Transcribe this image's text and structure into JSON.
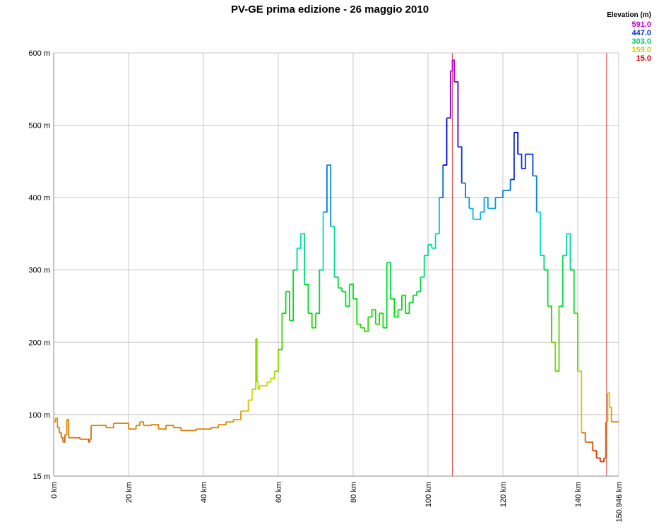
{
  "chart_data": {
    "type": "line",
    "title": "PV-GE prima edizione - 26 maggio 2010",
    "xlabel": "",
    "ylabel": "",
    "xlim": [
      0,
      150.946
    ],
    "ylim": [
      15,
      600
    ],
    "x_ticks": [
      0,
      20,
      40,
      60,
      80,
      100,
      120,
      140,
      150.946
    ],
    "x_tick_labels": [
      "0 km",
      "20 km",
      "40 km",
      "60 km",
      "80 km",
      "100 km",
      "120 km",
      "140 km",
      "150.946 km"
    ],
    "y_ticks": [
      15,
      100,
      200,
      300,
      400,
      500,
      600
    ],
    "y_tick_labels": [
      "15 m",
      "100 m",
      "200 m",
      "300 m",
      "400 m",
      "500 m",
      "600 m"
    ],
    "grid": true,
    "legend": {
      "title": "Elevation (m)",
      "placement": "top-right",
      "entries": [
        {
          "label": "591.0",
          "color": "#cc00cc"
        },
        {
          "label": "447.0",
          "color": "#0033cc"
        },
        {
          "label": "303.0",
          "color": "#00cc66"
        },
        {
          "label": "159.0",
          "color": "#cccc00"
        },
        {
          "label": "15.0",
          "color": "#dd0000"
        }
      ]
    },
    "markers": [
      {
        "x": 106.5,
        "color": "#dd4444"
      },
      {
        "x": 147.7,
        "color": "#dd4444"
      }
    ],
    "series": [
      {
        "x": [
          0,
          0.5,
          1,
          1.5,
          2,
          2.5,
          3,
          3.5,
          4,
          4.5,
          5,
          6,
          7,
          8,
          9,
          9.3,
          9.6,
          10,
          12,
          14,
          16,
          18,
          20,
          22,
          23,
          24,
          26,
          28,
          30,
          32,
          34,
          36,
          38,
          40,
          42,
          44,
          46,
          48,
          50,
          52,
          53,
          54,
          54.3,
          54.6,
          55,
          56,
          57,
          58,
          59,
          60,
          61,
          62,
          63,
          64,
          65,
          66,
          67,
          68,
          69,
          70,
          71,
          72,
          73,
          74,
          75,
          76,
          77,
          78,
          79,
          80,
          81,
          82,
          83,
          84,
          85,
          86,
          87,
          88,
          89,
          90,
          91,
          92,
          93,
          94,
          95,
          96,
          97,
          98,
          99,
          100,
          101,
          102,
          103,
          104,
          105,
          106,
          106.5,
          107,
          108,
          109,
          110,
          111,
          112,
          113,
          114,
          115,
          116,
          117,
          118,
          119,
          120,
          121,
          122,
          123,
          124,
          125,
          126,
          127,
          128,
          129,
          130,
          131,
          132,
          133,
          134,
          135,
          136,
          137,
          138,
          139,
          140,
          141,
          142,
          143,
          144,
          145,
          146,
          147,
          147.5,
          148,
          148.5,
          149,
          150,
          150.946
        ],
        "y": [
          90,
          95,
          82,
          75,
          68,
          62,
          72,
          93,
          68,
          68,
          68,
          68,
          66,
          66,
          66,
          62,
          66,
          85,
          85,
          82,
          88,
          88,
          80,
          85,
          90,
          85,
          86,
          80,
          85,
          82,
          78,
          78,
          80,
          80,
          82,
          86,
          90,
          93,
          105,
          120,
          135,
          205,
          145,
          135,
          140,
          140,
          145,
          150,
          160,
          190,
          240,
          270,
          230,
          300,
          330,
          350,
          280,
          240,
          220,
          240,
          300,
          380,
          445,
          360,
          290,
          275,
          270,
          250,
          280,
          260,
          225,
          220,
          215,
          235,
          245,
          225,
          240,
          220,
          310,
          260,
          235,
          245,
          265,
          240,
          255,
          265,
          270,
          290,
          320,
          335,
          330,
          350,
          400,
          445,
          510,
          575,
          590,
          560,
          470,
          420,
          400,
          385,
          370,
          370,
          380,
          400,
          385,
          385,
          400,
          400,
          410,
          410,
          425,
          490,
          460,
          440,
          460,
          460,
          430,
          380,
          320,
          300,
          250,
          200,
          160,
          250,
          320,
          350,
          300,
          240,
          160,
          75,
          62,
          62,
          50,
          40,
          35,
          40,
          90,
          130,
          110,
          90,
          90,
          90
        ]
      }
    ]
  }
}
